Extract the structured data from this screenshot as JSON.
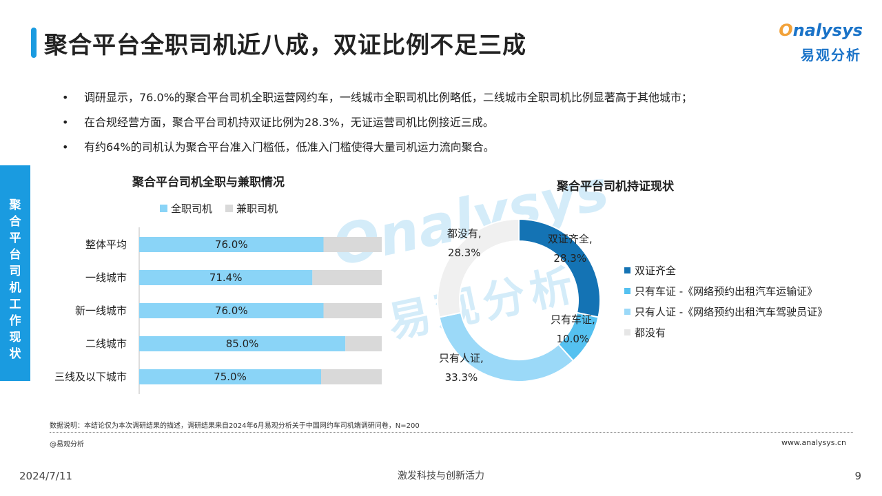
{
  "title": "聚合平台全职司机近八成，双证比例不足三成",
  "logo": {
    "top_o": "O",
    "top_rest": "nalysys",
    "bottom": "易观分析"
  },
  "watermark": {
    "top": "Onalysys",
    "bottom": "易观分析"
  },
  "bullets": [
    "调研显示，76.0%的聚合平台司机全职运营网约车，一线城市全职司机比例略低，二线城市全职司机比例显著高于其他城市；",
    "在合规经营方面，聚合平台司机持双证比例为28.3%，无证运营司机比例接近三成。",
    "有约64%的司机认为聚合平台准入门槛低，低准入门槛使得大量司机运力流向聚合。"
  ],
  "side_tab": "聚合平台司机工作现状",
  "bar_chart": {
    "title": "聚合平台司机全职与兼职情况",
    "legend": [
      "全职司机",
      "兼职司机"
    ]
  },
  "donut_chart": {
    "title": "聚合平台司机持证现状",
    "legend": [
      "双证齐全",
      "只有车证 -《网络预约出租汽车运输证》",
      "只有人证 -《网络预约出租汽车驾驶员证》",
      "都没有"
    ]
  },
  "colors": {
    "accent": "#1a9be0",
    "fulltime": "#8ad4f7",
    "parttime": "#d9d9d9",
    "both": "#1473b4",
    "car_only": "#55c1f0",
    "person_only": "#9bd9f8",
    "none": "#f0f0f0"
  },
  "chart_data": [
    {
      "type": "bar",
      "orientation": "horizontal",
      "stacked": true,
      "title": "聚合平台司机全职与兼职情况",
      "categories": [
        "整体平均",
        "一线城市",
        "新一线城市",
        "二线城市",
        "三线及以下城市"
      ],
      "series": [
        {
          "name": "全职司机",
          "values": [
            76.0,
            71.4,
            76.0,
            85.0,
            75.0
          ],
          "labels": [
            "76.0%",
            "71.4%",
            "76.0%",
            "85.0%",
            "75.0%"
          ]
        },
        {
          "name": "兼职司机",
          "values": [
            24.0,
            28.6,
            24.0,
            15.0,
            25.0
          ]
        }
      ],
      "xlim": [
        0,
        100
      ],
      "legend_position": "top"
    },
    {
      "type": "pie",
      "donut": true,
      "title": "聚合平台司机持证现状",
      "slices": [
        {
          "name": "双证齐全",
          "value": 28.3,
          "label": "双证齐全,",
          "value_label": "28.3%"
        },
        {
          "name": "只有车证",
          "value": 10.0,
          "label": "只有车证,",
          "value_label": "10.0%"
        },
        {
          "name": "只有人证",
          "value": 33.3,
          "label": "只有人证,",
          "value_label": "33.3%"
        },
        {
          "name": "都没有",
          "value": 28.3,
          "label": "都没有,",
          "value_label": "28.3%"
        }
      ],
      "legend_position": "right"
    }
  ],
  "footer": {
    "note": "数据说明：本结论仅为本次调研结果的描述，调研结果来自2024年6月易观分析关于中国网约车司机端调研问卷，N=200",
    "source": "@易观分析",
    "url": "www.analysys.cn",
    "date": "2024/7/11",
    "slogan": "激发科技与创新活力",
    "page": "9"
  }
}
